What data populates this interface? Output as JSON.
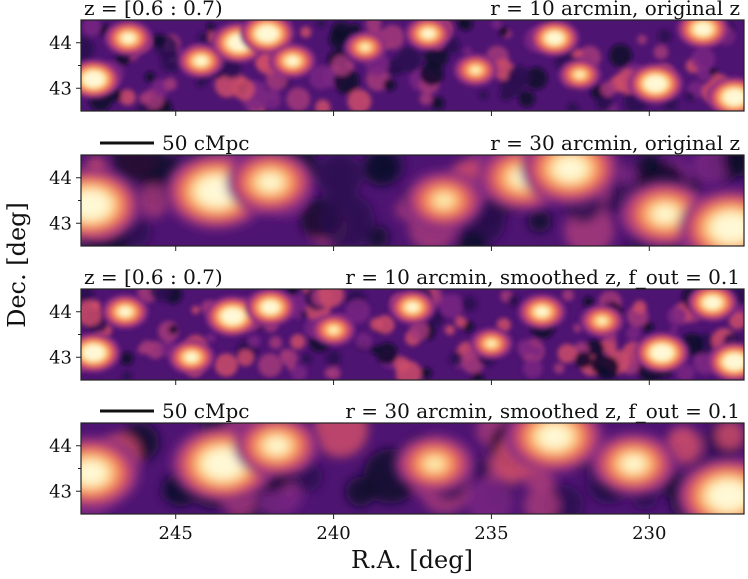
{
  "chart_data": {
    "type": "heatmap",
    "colormap": "magma",
    "xlabel": "R.A. [deg]",
    "ylabel": "Dec. [deg]",
    "xlim": [
      248,
      227
    ],
    "ylim": [
      42.5,
      44.5
    ],
    "xticks": [
      "245",
      "240",
      "235",
      "230"
    ],
    "yticks": [
      "44",
      "43"
    ],
    "panels": [
      {
        "left_label": "z = [0.6 : 0.7)",
        "right_label": "r = 10 arcmin, original z",
        "scale_bar": "",
        "smoothing": "fine",
        "blobs": [
          {
            "ra": 247.6,
            "dec": 43.2,
            "v": 0.95
          },
          {
            "ra": 246.5,
            "dec": 44.1,
            "v": 0.75
          },
          {
            "ra": 244.2,
            "dec": 43.6,
            "v": 0.7
          },
          {
            "ra": 243.0,
            "dec": 44.0,
            "v": 1.0
          },
          {
            "ra": 242.1,
            "dec": 44.2,
            "v": 1.0
          },
          {
            "ra": 241.3,
            "dec": 43.6,
            "v": 0.7
          },
          {
            "ra": 239.0,
            "dec": 43.9,
            "v": 0.55
          },
          {
            "ra": 237.0,
            "dec": 44.2,
            "v": 0.7
          },
          {
            "ra": 235.5,
            "dec": 43.4,
            "v": 0.6
          },
          {
            "ra": 233.0,
            "dec": 44.1,
            "v": 0.8
          },
          {
            "ra": 232.2,
            "dec": 43.3,
            "v": 0.55
          },
          {
            "ra": 229.8,
            "dec": 43.1,
            "v": 1.0
          },
          {
            "ra": 228.3,
            "dec": 44.3,
            "v": 0.9
          },
          {
            "ra": 227.3,
            "dec": 42.8,
            "v": 1.0
          }
        ]
      },
      {
        "left_label": "",
        "right_label": "r = 30 arcmin, original z",
        "scale_bar": "50 cMpc",
        "smoothing": "coarse",
        "blobs": [
          {
            "ra": 247.7,
            "dec": 43.4,
            "v": 0.95
          },
          {
            "ra": 243.7,
            "dec": 43.7,
            "v": 1.0
          },
          {
            "ra": 242.0,
            "dec": 43.9,
            "v": 0.7
          },
          {
            "ra": 236.5,
            "dec": 43.5,
            "v": 0.55
          },
          {
            "ra": 234.0,
            "dec": 44.0,
            "v": 0.75
          },
          {
            "ra": 232.5,
            "dec": 44.2,
            "v": 0.9
          },
          {
            "ra": 229.5,
            "dec": 43.2,
            "v": 0.75
          },
          {
            "ra": 227.4,
            "dec": 42.9,
            "v": 1.0
          }
        ]
      },
      {
        "left_label": "z = [0.6 : 0.7)",
        "right_label": "r = 10 arcmin, smoothed z, f_out = 0.1",
        "scale_bar": "",
        "smoothing": "fine",
        "blobs": [
          {
            "ra": 247.6,
            "dec": 43.1,
            "v": 0.95
          },
          {
            "ra": 246.6,
            "dec": 44.0,
            "v": 0.7
          },
          {
            "ra": 243.2,
            "dec": 43.9,
            "v": 1.0
          },
          {
            "ra": 242.0,
            "dec": 44.1,
            "v": 0.85
          },
          {
            "ra": 244.5,
            "dec": 43.0,
            "v": 0.7
          },
          {
            "ra": 240.0,
            "dec": 43.6,
            "v": 0.6
          },
          {
            "ra": 237.5,
            "dec": 44.1,
            "v": 0.7
          },
          {
            "ra": 235.0,
            "dec": 43.3,
            "v": 0.55
          },
          {
            "ra": 233.4,
            "dec": 44.0,
            "v": 0.75
          },
          {
            "ra": 231.5,
            "dec": 43.8,
            "v": 0.6
          },
          {
            "ra": 229.6,
            "dec": 43.1,
            "v": 1.0
          },
          {
            "ra": 228.0,
            "dec": 44.2,
            "v": 0.85
          },
          {
            "ra": 227.3,
            "dec": 42.9,
            "v": 0.95
          }
        ]
      },
      {
        "left_label": "",
        "right_label": "r = 30 arcmin, smoothed z, f_out = 0.1",
        "scale_bar": "50 cMpc",
        "smoothing": "coarse",
        "blobs": [
          {
            "ra": 247.7,
            "dec": 43.4,
            "v": 0.9
          },
          {
            "ra": 243.5,
            "dec": 43.6,
            "v": 1.0
          },
          {
            "ra": 241.8,
            "dec": 44.0,
            "v": 0.65
          },
          {
            "ra": 236.8,
            "dec": 43.6,
            "v": 0.55
          },
          {
            "ra": 233.0,
            "dec": 44.2,
            "v": 0.9
          },
          {
            "ra": 230.5,
            "dec": 43.6,
            "v": 0.65
          },
          {
            "ra": 227.5,
            "dec": 42.9,
            "v": 1.0
          }
        ]
      }
    ]
  },
  "palette": [
    "#0d0829",
    "#2a0f4f",
    "#4e1472",
    "#7a2782",
    "#a3387a",
    "#cc4c6a",
    "#ea6c5c",
    "#f9985e",
    "#fdc483",
    "#fdedb0",
    "#fff8d6"
  ]
}
